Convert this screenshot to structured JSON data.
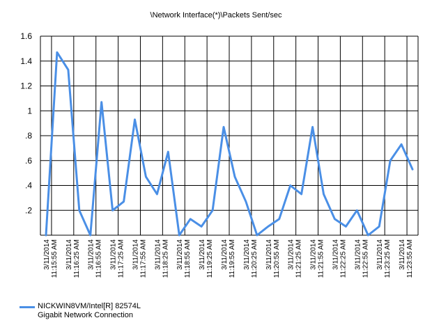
{
  "chart_data": {
    "type": "line",
    "title": "\\Network Interface(*)\\Packets Sent/sec",
    "xlabel": "",
    "ylabel": "",
    "ylim": [
      0,
      1.6
    ],
    "yticks": [
      0,
      0.2,
      0.4,
      0.6,
      0.8,
      1.0,
      1.2,
      1.4,
      1.6
    ],
    "ytick_labels": [
      "",
      ".2",
      ".4",
      ".6",
      ".8",
      "1",
      "1.2",
      "1.4",
      "1.6"
    ],
    "grid": true,
    "legend_position": "bottom-left",
    "x_tick_labels": [
      [
        "3/11/2014",
        "11:15:55 AM"
      ],
      [
        "3/11/2014",
        "11:16:25 AM"
      ],
      [
        "3/11/2014",
        "11:16:55 AM"
      ],
      [
        "3/11/2014",
        "11:17:25 AM"
      ],
      [
        "3/11/2014",
        "11:17:55 AM"
      ],
      [
        "3/11/2014",
        "11:18:25 AM"
      ],
      [
        "3/11/2014",
        "11:18:55 AM"
      ],
      [
        "3/11/2014",
        "11:19:25 AM"
      ],
      [
        "3/11/2014",
        "11:19:55 AM"
      ],
      [
        "3/11/2014",
        "11:20:25 AM"
      ],
      [
        "3/11/2014",
        "11:20:55 AM"
      ],
      [
        "3/11/2014",
        "11:21:25 AM"
      ],
      [
        "3/11/2014",
        "11:21:55 AM"
      ],
      [
        "3/11/2014",
        "11:22:25 AM"
      ],
      [
        "3/11/2014",
        "11:22:55 AM"
      ],
      [
        "3/11/2014",
        "11:23:25 AM"
      ],
      [
        "3/11/2014",
        "11:23:55 AM"
      ]
    ],
    "series": [
      {
        "name": "NICKWIN8VM/Intel[R] 82574L Gigabit Network Connection",
        "color": "#4a8fe6",
        "x": [
          "11:15:40 AM",
          "11:15:55 AM",
          "11:16:10 AM",
          "11:16:25 AM",
          "11:16:40 AM",
          "11:16:55 AM",
          "11:17:10 AM",
          "11:17:25 AM",
          "11:17:40 AM",
          "11:17:55 AM",
          "11:18:10 AM",
          "11:18:25 AM",
          "11:18:40 AM",
          "11:18:55 AM",
          "11:19:10 AM",
          "11:19:25 AM",
          "11:19:40 AM",
          "11:19:55 AM",
          "11:20:10 AM",
          "11:20:25 AM",
          "11:20:40 AM",
          "11:20:55 AM",
          "11:21:10 AM",
          "11:21:25 AM",
          "11:21:40 AM",
          "11:21:55 AM",
          "11:22:10 AM",
          "11:22:25 AM",
          "11:22:40 AM",
          "11:22:55 AM",
          "11:23:10 AM",
          "11:23:25 AM",
          "11:23:40 AM",
          "11:23:55 AM"
        ],
        "values": [
          0,
          1.47,
          1.33,
          0.2,
          0,
          1.07,
          0.2,
          0.27,
          0.93,
          0.47,
          0.33,
          0.67,
          0,
          0.13,
          0.07,
          0.2,
          0.87,
          0.47,
          0.27,
          0,
          0.07,
          0.13,
          0.4,
          0.33,
          0.87,
          0.33,
          0.13,
          0.07,
          0.2,
          0,
          0.07,
          0.6,
          0.73,
          0.53
        ]
      }
    ]
  }
}
